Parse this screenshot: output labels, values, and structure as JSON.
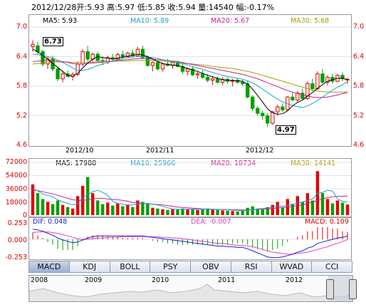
{
  "header": {
    "date": "2012/12/28",
    "open": "开:5.93",
    "high": "高:5.97",
    "low": "低:5.85",
    "close": "收:5.94",
    "volume": "量:14540",
    "change": "幅:-0.17%"
  },
  "price_ma": {
    "ma5": "MA5: 5.93",
    "ma10": "MA10: 5.89",
    "ma20": "MA20: 5.67",
    "ma30": "MA30: 5.68"
  },
  "volume_ma": {
    "ma5": "MA5: 17988",
    "ma10": "MA10: 25966",
    "ma20": "MA20: 18734",
    "ma30": "MA30: 14141"
  },
  "macd_info": {
    "dif": "DIF: 0.048",
    "dea": "DEA: -0.007",
    "macd": "MACD: 0.109"
  },
  "annotations": {
    "high": "6.73",
    "low": "4.97"
  },
  "price_ticks": [
    "7.0",
    "6.4",
    "5.8",
    "5.2",
    "4.6"
  ],
  "volume_ticks": [
    "72000",
    "54000",
    "36000",
    "18000",
    "0"
  ],
  "macd_ticks": [
    "0.253",
    "0.000",
    "-0.253"
  ],
  "x_labels": [
    "2012/10",
    "2012/11",
    "2012/12"
  ],
  "tabs": [
    "MACD",
    "KDJ",
    "BOLL",
    "PSY",
    "OBV",
    "RSI",
    "WVAD",
    "CCI"
  ],
  "overview_years": [
    "2008",
    "2009",
    "2010",
    "2011",
    "2012"
  ],
  "colors": {
    "up": "#e60000",
    "down": "#00a000",
    "ma5": "#000000",
    "ma10": "#1fa0c8",
    "ma20": "#d0208a",
    "ma30": "#a0a000",
    "dif": "#2020d0",
    "dea": "#e040c0"
  },
  "chart_data": {
    "type": "candlestick",
    "price_range": [
      4.6,
      7.0
    ],
    "volume_range": [
      0,
      72000
    ],
    "macd_range": [
      -0.253,
      0.253
    ],
    "candles": [
      {
        "o": 6.6,
        "h": 6.73,
        "l": 6.5,
        "c": 6.65,
        "v": 42000
      },
      {
        "o": 6.62,
        "h": 6.7,
        "l": 6.45,
        "c": 6.5,
        "v": 30000
      },
      {
        "o": 6.5,
        "h": 6.55,
        "l": 6.2,
        "c": 6.25,
        "v": 22000
      },
      {
        "o": 6.25,
        "h": 6.4,
        "l": 6.15,
        "c": 6.35,
        "v": 18000
      },
      {
        "o": 6.35,
        "h": 6.42,
        "l": 6.1,
        "c": 6.15,
        "v": 15000
      },
      {
        "o": 6.15,
        "h": 6.18,
        "l": 5.9,
        "c": 5.95,
        "v": 20000
      },
      {
        "o": 5.95,
        "h": 6.1,
        "l": 5.88,
        "c": 6.05,
        "v": 14000
      },
      {
        "o": 6.05,
        "h": 6.12,
        "l": 5.98,
        "c": 6.0,
        "v": 11000
      },
      {
        "o": 6.0,
        "h": 6.08,
        "l": 5.92,
        "c": 6.04,
        "v": 9000
      },
      {
        "o": 6.04,
        "h": 6.3,
        "l": 6.0,
        "c": 6.25,
        "v": 26000
      },
      {
        "o": 6.25,
        "h": 6.55,
        "l": 6.2,
        "c": 6.5,
        "v": 40000
      },
      {
        "o": 6.5,
        "h": 6.62,
        "l": 6.3,
        "c": 6.35,
        "v": 52000
      },
      {
        "o": 6.35,
        "h": 6.48,
        "l": 6.3,
        "c": 6.45,
        "v": 30000
      },
      {
        "o": 6.45,
        "h": 6.5,
        "l": 6.28,
        "c": 6.32,
        "v": 20000
      },
      {
        "o": 6.32,
        "h": 6.4,
        "l": 6.22,
        "c": 6.3,
        "v": 15000
      },
      {
        "o": 6.3,
        "h": 6.42,
        "l": 6.25,
        "c": 6.38,
        "v": 17000
      },
      {
        "o": 6.38,
        "h": 6.45,
        "l": 6.3,
        "c": 6.35,
        "v": 13000
      },
      {
        "o": 6.35,
        "h": 6.48,
        "l": 6.33,
        "c": 6.44,
        "v": 16000
      },
      {
        "o": 6.44,
        "h": 6.52,
        "l": 6.36,
        "c": 6.4,
        "v": 12000
      },
      {
        "o": 6.4,
        "h": 6.5,
        "l": 6.38,
        "c": 6.47,
        "v": 14000
      },
      {
        "o": 6.47,
        "h": 6.55,
        "l": 6.4,
        "c": 6.42,
        "v": 11000
      },
      {
        "o": 6.42,
        "h": 6.6,
        "l": 6.4,
        "c": 6.55,
        "v": 20000
      },
      {
        "o": 6.55,
        "h": 6.62,
        "l": 6.35,
        "c": 6.38,
        "v": 18000
      },
      {
        "o": 6.38,
        "h": 6.42,
        "l": 6.2,
        "c": 6.22,
        "v": 16000
      },
      {
        "o": 6.22,
        "h": 6.3,
        "l": 6.1,
        "c": 6.28,
        "v": 10000
      },
      {
        "o": 6.28,
        "h": 6.32,
        "l": 6.12,
        "c": 6.15,
        "v": 9000
      },
      {
        "o": 6.15,
        "h": 6.28,
        "l": 6.1,
        "c": 6.25,
        "v": 8000
      },
      {
        "o": 6.25,
        "h": 6.35,
        "l": 6.2,
        "c": 6.22,
        "v": 7000
      },
      {
        "o": 6.22,
        "h": 6.3,
        "l": 6.15,
        "c": 6.28,
        "v": 8000
      },
      {
        "o": 6.28,
        "h": 6.32,
        "l": 6.18,
        "c": 6.2,
        "v": 7500
      },
      {
        "o": 6.2,
        "h": 6.25,
        "l": 6.05,
        "c": 6.1,
        "v": 9000
      },
      {
        "o": 6.1,
        "h": 6.18,
        "l": 6.02,
        "c": 6.15,
        "v": 8000
      },
      {
        "o": 6.15,
        "h": 6.2,
        "l": 6.0,
        "c": 6.03,
        "v": 8500
      },
      {
        "o": 6.03,
        "h": 6.1,
        "l": 5.95,
        "c": 6.05,
        "v": 7000
      },
      {
        "o": 6.05,
        "h": 6.12,
        "l": 5.95,
        "c": 5.98,
        "v": 7500
      },
      {
        "o": 5.98,
        "h": 6.05,
        "l": 5.88,
        "c": 5.92,
        "v": 9000
      },
      {
        "o": 5.92,
        "h": 5.98,
        "l": 5.82,
        "c": 5.95,
        "v": 8000
      },
      {
        "o": 5.95,
        "h": 6.0,
        "l": 5.85,
        "c": 5.88,
        "v": 7000
      },
      {
        "o": 5.88,
        "h": 5.98,
        "l": 5.82,
        "c": 5.94,
        "v": 6500
      },
      {
        "o": 5.94,
        "h": 5.98,
        "l": 5.85,
        "c": 5.9,
        "v": 6000
      },
      {
        "o": 5.9,
        "h": 5.95,
        "l": 5.8,
        "c": 5.92,
        "v": 5500
      },
      {
        "o": 5.92,
        "h": 5.96,
        "l": 5.85,
        "c": 5.88,
        "v": 5000
      },
      {
        "o": 5.88,
        "h": 5.94,
        "l": 5.8,
        "c": 5.85,
        "v": 6000
      },
      {
        "o": 5.85,
        "h": 5.9,
        "l": 5.55,
        "c": 5.58,
        "v": 10000
      },
      {
        "o": 5.58,
        "h": 5.62,
        "l": 5.3,
        "c": 5.35,
        "v": 12000
      },
      {
        "o": 5.35,
        "h": 5.4,
        "l": 5.2,
        "c": 5.25,
        "v": 9000
      },
      {
        "o": 5.25,
        "h": 5.3,
        "l": 5.12,
        "c": 5.2,
        "v": 8000
      },
      {
        "o": 5.2,
        "h": 5.25,
        "l": 4.97,
        "c": 5.05,
        "v": 11000
      },
      {
        "o": 5.05,
        "h": 5.3,
        "l": 5.02,
        "c": 5.28,
        "v": 14000
      },
      {
        "o": 5.28,
        "h": 5.42,
        "l": 5.2,
        "c": 5.38,
        "v": 18000
      },
      {
        "o": 5.38,
        "h": 5.45,
        "l": 5.28,
        "c": 5.32,
        "v": 10000
      },
      {
        "o": 5.32,
        "h": 5.6,
        "l": 5.3,
        "c": 5.58,
        "v": 22000
      },
      {
        "o": 5.58,
        "h": 5.68,
        "l": 5.5,
        "c": 5.52,
        "v": 15000
      },
      {
        "o": 5.52,
        "h": 5.7,
        "l": 5.48,
        "c": 5.66,
        "v": 26000
      },
      {
        "o": 5.66,
        "h": 5.75,
        "l": 5.52,
        "c": 5.55,
        "v": 18000
      },
      {
        "o": 5.55,
        "h": 5.9,
        "l": 5.52,
        "c": 5.85,
        "v": 30000
      },
      {
        "o": 5.85,
        "h": 5.95,
        "l": 5.7,
        "c": 5.75,
        "v": 20000
      },
      {
        "o": 5.75,
        "h": 6.1,
        "l": 5.72,
        "c": 6.05,
        "v": 60000
      },
      {
        "o": 6.05,
        "h": 6.15,
        "l": 5.85,
        "c": 5.88,
        "v": 30000
      },
      {
        "o": 5.88,
        "h": 6.02,
        "l": 5.82,
        "c": 5.98,
        "v": 22000
      },
      {
        "o": 5.98,
        "h": 6.05,
        "l": 5.85,
        "c": 5.9,
        "v": 16000
      },
      {
        "o": 5.9,
        "h": 6.05,
        "l": 5.88,
        "c": 6.02,
        "v": 20000
      },
      {
        "o": 6.02,
        "h": 6.08,
        "l": 5.9,
        "c": 5.95,
        "v": 17000
      },
      {
        "o": 5.93,
        "h": 5.97,
        "l": 5.85,
        "c": 5.94,
        "v": 14540
      }
    ],
    "ma5": [
      6.55,
      6.5,
      6.42,
      6.35,
      6.26,
      6.18,
      6.1,
      6.02,
      6.0,
      6.06,
      6.17,
      6.27,
      6.35,
      6.4,
      6.38,
      6.37,
      6.35,
      6.37,
      6.39,
      6.41,
      6.42,
      6.45,
      6.43,
      6.4,
      6.35,
      6.3,
      6.26,
      6.24,
      6.23,
      6.22,
      6.19,
      6.16,
      6.13,
      6.1,
      6.06,
      6.02,
      5.99,
      5.96,
      5.93,
      5.92,
      5.91,
      5.91,
      5.9,
      5.84,
      5.74,
      5.61,
      5.48,
      5.34,
      5.26,
      5.23,
      5.24,
      5.3,
      5.4,
      5.47,
      5.52,
      5.6,
      5.67,
      5.76,
      5.83,
      5.9,
      5.93,
      5.96,
      5.96,
      5.93
    ],
    "ma10": [
      6.45,
      6.44,
      6.42,
      6.4,
      6.37,
      6.33,
      6.28,
      6.23,
      6.17,
      6.12,
      6.12,
      6.14,
      6.18,
      6.22,
      6.25,
      6.28,
      6.31,
      6.34,
      6.36,
      6.38,
      6.39,
      6.4,
      6.4,
      6.39,
      6.38,
      6.36,
      6.34,
      6.32,
      6.3,
      6.28,
      6.26,
      6.23,
      6.2,
      6.17,
      6.14,
      6.11,
      6.08,
      6.05,
      6.02,
      6.0,
      5.98,
      5.96,
      5.94,
      5.91,
      5.87,
      5.81,
      5.74,
      5.67,
      5.6,
      5.54,
      5.48,
      5.44,
      5.41,
      5.38,
      5.37,
      5.4,
      5.45,
      5.51,
      5.58,
      5.65,
      5.72,
      5.78,
      5.83,
      5.89
    ],
    "ma20": [
      6.3,
      6.31,
      6.32,
      6.32,
      6.32,
      6.31,
      6.3,
      6.28,
      6.26,
      6.25,
      6.25,
      6.26,
      6.27,
      6.28,
      6.29,
      6.3,
      6.31,
      6.32,
      6.33,
      6.34,
      6.35,
      6.36,
      6.36,
      6.36,
      6.35,
      6.34,
      6.33,
      6.32,
      6.31,
      6.3,
      6.28,
      6.26,
      6.24,
      6.22,
      6.2,
      6.18,
      6.16,
      6.14,
      6.12,
      6.1,
      6.08,
      6.06,
      6.04,
      6.01,
      5.98,
      5.95,
      5.91,
      5.87,
      5.83,
      5.79,
      5.75,
      5.71,
      5.68,
      5.65,
      5.62,
      5.6,
      5.58,
      5.57,
      5.57,
      5.58,
      5.6,
      5.62,
      5.65,
      5.67
    ],
    "ma30": [
      6.25,
      6.26,
      6.27,
      6.28,
      6.29,
      6.29,
      6.29,
      6.29,
      6.28,
      6.28,
      6.28,
      6.28,
      6.29,
      6.29,
      6.3,
      6.3,
      6.3,
      6.31,
      6.31,
      6.31,
      6.32,
      6.32,
      6.32,
      6.32,
      6.32,
      6.31,
      6.31,
      6.3,
      6.29,
      6.28,
      6.27,
      6.26,
      6.25,
      6.24,
      6.23,
      6.22,
      6.2,
      6.19,
      6.18,
      6.17,
      6.16,
      6.14,
      6.12,
      6.1,
      6.08,
      6.05,
      6.02,
      5.99,
      5.96,
      5.93,
      5.9,
      5.87,
      5.84,
      5.81,
      5.78,
      5.75,
      5.72,
      5.7,
      5.69,
      5.68,
      5.68,
      5.68,
      5.68,
      5.68
    ],
    "vol_ma5": [
      36000,
      33000,
      29000,
      27000,
      25000,
      21000,
      18000,
      16000,
      14000,
      16000,
      24000,
      28000,
      32000,
      34000,
      31000,
      27000,
      19000,
      16000,
      15000,
      14000,
      14000,
      15000,
      16000,
      16000,
      15000,
      14000,
      12000,
      10000,
      8500,
      7900,
      8000,
      8000,
      8100,
      8200,
      8000,
      7900,
      7900,
      7700,
      7500,
      7300,
      6800,
      6300,
      6000,
      6500,
      7700,
      8400,
      9000,
      10000,
      10800,
      12800,
      12200,
      13000,
      15000,
      16000,
      18000,
      20000,
      22000,
      30000,
      31000,
      34000,
      33000,
      22000,
      19000,
      17988
    ],
    "vol_ma10": [
      34000,
      33500,
      32000,
      30500,
      29000,
      27000,
      25000,
      23000,
      21000,
      20000,
      20000,
      21000,
      22000,
      23000,
      23000,
      22000,
      21500,
      21000,
      20000,
      19000,
      17000,
      16500,
      16000,
      15500,
      15000,
      14500,
      14000,
      13000,
      12000,
      11000,
      10500,
      10000,
      9500,
      9000,
      8500,
      8200,
      8000,
      7900,
      7800,
      7600,
      7400,
      7200,
      7000,
      7100,
      7500,
      7800,
      8000,
      8400,
      9000,
      10000,
      10500,
      11000,
      12000,
      13000,
      14000,
      16000,
      18000,
      20000,
      22000,
      24000,
      25000,
      25500,
      25800,
      25966
    ],
    "dif": [
      0.15,
      0.14,
      0.12,
      0.09,
      0.06,
      0.02,
      -0.01,
      -0.03,
      -0.05,
      -0.04,
      -0.01,
      0.02,
      0.04,
      0.05,
      0.05,
      0.05,
      0.05,
      0.05,
      0.05,
      0.05,
      0.05,
      0.05,
      0.05,
      0.04,
      0.03,
      0.02,
      0.01,
      0.0,
      -0.01,
      -0.02,
      -0.03,
      -0.04,
      -0.05,
      -0.06,
      -0.07,
      -0.08,
      -0.09,
      -0.1,
      -0.1,
      -0.11,
      -0.11,
      -0.12,
      -0.12,
      -0.14,
      -0.17,
      -0.2,
      -0.23,
      -0.26,
      -0.27,
      -0.27,
      -0.26,
      -0.24,
      -0.22,
      -0.19,
      -0.17,
      -0.13,
      -0.11,
      -0.06,
      -0.04,
      -0.02,
      0.0,
      0.02,
      0.03,
      0.048
    ],
    "dea": [
      0.1,
      0.11,
      0.11,
      0.11,
      0.1,
      0.09,
      0.07,
      0.05,
      0.03,
      0.01,
      0.0,
      0.0,
      0.01,
      0.02,
      0.02,
      0.03,
      0.03,
      0.03,
      0.04,
      0.04,
      0.04,
      0.04,
      0.04,
      0.04,
      0.04,
      0.04,
      0.03,
      0.03,
      0.02,
      0.02,
      0.01,
      0.0,
      -0.01,
      -0.02,
      -0.03,
      -0.04,
      -0.05,
      -0.06,
      -0.06,
      -0.07,
      -0.08,
      -0.09,
      -0.09,
      -0.1,
      -0.11,
      -0.13,
      -0.15,
      -0.17,
      -0.19,
      -0.2,
      -0.21,
      -0.22,
      -0.22,
      -0.21,
      -0.2,
      -0.19,
      -0.17,
      -0.15,
      -0.13,
      -0.11,
      -0.08,
      -0.06,
      -0.03,
      -0.007
    ],
    "macd": [
      0.1,
      0.06,
      0.02,
      -0.04,
      -0.08,
      -0.14,
      -0.16,
      -0.16,
      -0.16,
      -0.1,
      -0.02,
      0.04,
      0.06,
      0.06,
      0.06,
      0.04,
      0.04,
      0.04,
      0.02,
      0.02,
      0.02,
      0.02,
      0.02,
      0.0,
      -0.02,
      -0.04,
      -0.04,
      -0.06,
      -0.06,
      -0.08,
      -0.08,
      -0.08,
      -0.08,
      -0.08,
      -0.08,
      -0.08,
      -0.08,
      -0.08,
      -0.08,
      -0.08,
      -0.06,
      -0.06,
      -0.06,
      -0.08,
      -0.12,
      -0.14,
      -0.16,
      -0.18,
      -0.16,
      -0.14,
      -0.1,
      -0.04,
      0.0,
      0.04,
      0.06,
      0.12,
      0.12,
      0.18,
      0.18,
      0.18,
      0.16,
      0.16,
      0.12,
      0.109
    ]
  }
}
